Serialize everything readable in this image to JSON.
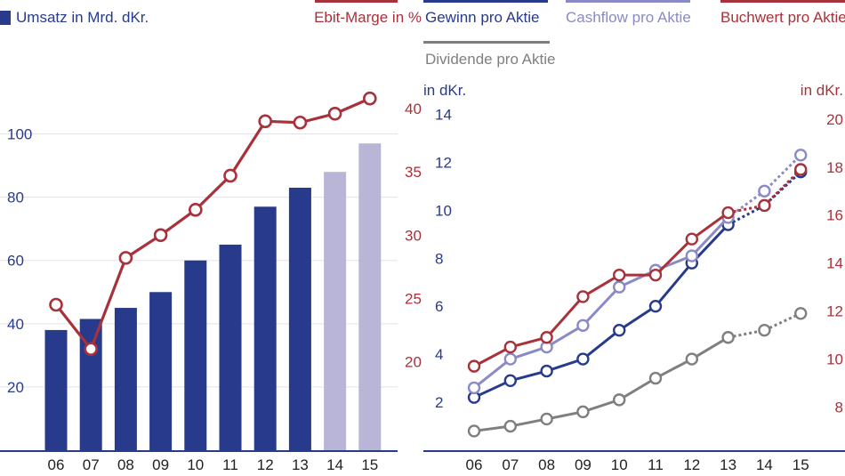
{
  "colors": {
    "navy": "#283a8c",
    "red": "#a8323b",
    "lavender": "#b9b5d6",
    "lightblue": "#8a8ac6",
    "gray": "#7f7f7f",
    "white": "#ffffff"
  },
  "chart_data": [
    {
      "type": "bar",
      "categories": [
        "06",
        "07",
        "08",
        "09",
        "10",
        "11",
        "12",
        "13",
        "14",
        "15"
      ],
      "legend": [
        {
          "label": "Umsatz in Mrd. dKr.",
          "color": "#283a8c"
        },
        {
          "label": "Ebit-Marge in %",
          "color": "#a8323b"
        }
      ],
      "left_axis": {
        "ticks": [
          "20",
          "40",
          "60",
          "80",
          "100"
        ],
        "ylim": [
          0,
          110
        ]
      },
      "right_axis": {
        "ticks": [
          "20",
          "25",
          "30",
          "35",
          "40"
        ],
        "ylim": [
          13,
          40.5
        ]
      },
      "series": [
        {
          "name": "Umsatz in Mrd. dKr.",
          "kind": "bar",
          "axis": "left",
          "values": [
            38,
            41.5,
            45,
            50,
            60,
            65,
            77,
            83,
            88,
            97
          ],
          "colors": [
            "#283a8c",
            "#283a8c",
            "#283a8c",
            "#283a8c",
            "#283a8c",
            "#283a8c",
            "#283a8c",
            "#283a8c",
            "#b9b5d6",
            "#b9b5d6"
          ]
        },
        {
          "name": "Ebit-Marge in %",
          "kind": "line",
          "axis": "right",
          "color": "#a8323b",
          "values": [
            24.5,
            21,
            28.2,
            30,
            32,
            34.7,
            39,
            38.9,
            39.6,
            40.8
          ]
        }
      ]
    },
    {
      "type": "line",
      "categories": [
        "06",
        "07",
        "08",
        "09",
        "10",
        "11",
        "12",
        "13",
        "14",
        "15"
      ],
      "legend": [
        {
          "label": "Gewinn pro Aktie",
          "color": "#283a8c"
        },
        {
          "label": "Cashflow pro Aktie",
          "color": "#8a8ac6"
        },
        {
          "label": "Buchwert pro Aktie",
          "color": "#a8323b"
        },
        {
          "label": "Dividende pro Aktie",
          "color": "#7f7f7f"
        }
      ],
      "left_axis": {
        "label": "in dKr.",
        "ticks": [
          "2",
          "4",
          "6",
          "8",
          "10",
          "12",
          "14"
        ],
        "ylim": [
          0,
          14.5
        ]
      },
      "right_axis": {
        "label": "in dKr.",
        "ticks": [
          "8",
          "10",
          "12",
          "14",
          "16",
          "18",
          "20"
        ],
        "ylim": [
          6.2,
          20.7
        ]
      },
      "series": [
        {
          "name": "Gewinn pro Aktie",
          "axis": "left",
          "color": "#283a8c",
          "values": [
            2.2,
            2.9,
            3.3,
            3.8,
            5.0,
            6.0,
            7.8,
            9.4,
            10.2,
            11.6
          ],
          "dashed_from_index": 7
        },
        {
          "name": "Cashflow pro Aktie",
          "axis": "left",
          "color": "#8a8ac6",
          "values": [
            2.6,
            3.8,
            4.3,
            5.2,
            6.8,
            7.5,
            8.1,
            9.7,
            10.8,
            12.3
          ],
          "dashed_from_index": 7
        },
        {
          "name": "Buchwert pro Aktie",
          "axis": "right",
          "color": "#a8323b",
          "values": [
            9.7,
            10.5,
            10.9,
            12.6,
            13.5,
            13.5,
            15.0,
            16.1,
            16.4,
            17.9
          ],
          "dashed_from_index": 7
        },
        {
          "name": "Dividende pro Aktie",
          "axis": "left",
          "color": "#7f7f7f",
          "values": [
            0.8,
            1.0,
            1.3,
            1.6,
            2.1,
            3.0,
            3.8,
            4.7,
            5.0,
            5.7
          ],
          "dashed_from_index": 7
        }
      ]
    }
  ]
}
